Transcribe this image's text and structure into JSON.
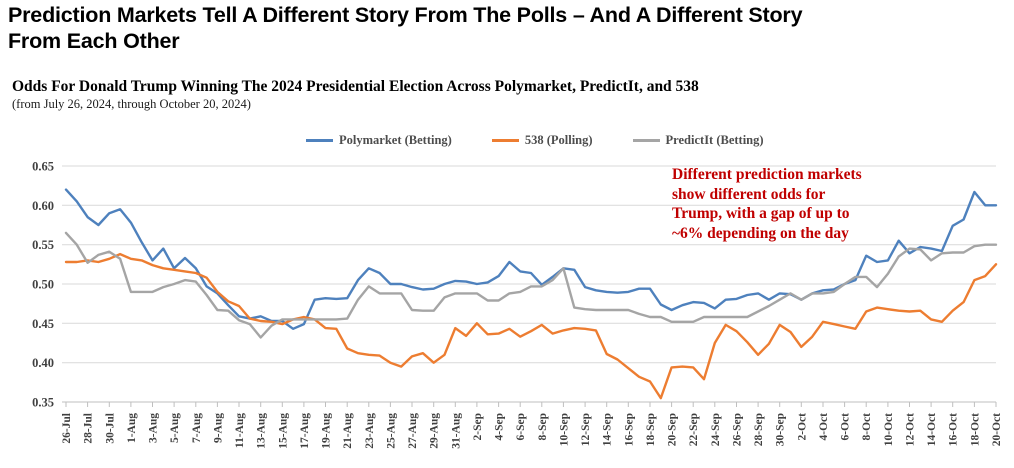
{
  "page": {
    "title": "Prediction Markets Tell A Different Story From The Polls – And A Different Story\nFrom Each Other"
  },
  "chart": {
    "title": "Odds For Donald Trump Winning The 2024 Presidential Election Across Polymarket, PredictIt, and 538",
    "subtitle": "(from July 26, 2024, through October 20, 2024)",
    "annotation": "Different prediction markets\nshow different odds for\nTrump, with a gap of up to\n~6% depending on the day",
    "annotation_color": "#c00000"
  },
  "chart_data": {
    "type": "line",
    "title": "Odds For Donald Trump Winning The 2024 Presidential Election Across Polymarket, PredictIt, and 538",
    "ylim": [
      0.35,
      0.65
    ],
    "yticks": [
      0.65,
      0.6,
      0.55,
      0.5,
      0.45,
      0.4,
      0.35
    ],
    "grid": true,
    "legend_position": "top",
    "x_tick_every": 2,
    "x": [
      "26-Jul",
      "27-Jul",
      "28-Jul",
      "29-Jul",
      "30-Jul",
      "31-Jul",
      "1-Aug",
      "2-Aug",
      "3-Aug",
      "4-Aug",
      "5-Aug",
      "6-Aug",
      "7-Aug",
      "8-Aug",
      "9-Aug",
      "10-Aug",
      "11-Aug",
      "12-Aug",
      "13-Aug",
      "14-Aug",
      "15-Aug",
      "16-Aug",
      "17-Aug",
      "18-Aug",
      "19-Aug",
      "20-Aug",
      "21-Aug",
      "22-Aug",
      "23-Aug",
      "24-Aug",
      "25-Aug",
      "26-Aug",
      "27-Aug",
      "28-Aug",
      "29-Aug",
      "30-Aug",
      "31-Aug",
      "1-Sep",
      "2-Sep",
      "3-Sep",
      "4-Sep",
      "5-Sep",
      "6-Sep",
      "7-Sep",
      "8-Sep",
      "9-Sep",
      "10-Sep",
      "11-Sep",
      "12-Sep",
      "13-Sep",
      "14-Sep",
      "15-Sep",
      "16-Sep",
      "17-Sep",
      "18-Sep",
      "19-Sep",
      "20-Sep",
      "21-Sep",
      "22-Sep",
      "23-Sep",
      "24-Sep",
      "25-Sep",
      "26-Sep",
      "27-Sep",
      "28-Sep",
      "29-Sep",
      "30-Sep",
      "1-Oct",
      "2-Oct",
      "3-Oct",
      "4-Oct",
      "5-Oct",
      "6-Oct",
      "7-Oct",
      "8-Oct",
      "9-Oct",
      "10-Oct",
      "11-Oct",
      "12-Oct",
      "13-Oct",
      "14-Oct",
      "15-Oct",
      "16-Oct",
      "17-Oct",
      "18-Oct",
      "19-Oct",
      "20-Oct"
    ],
    "series": [
      {
        "name": "Polymarket (Betting)",
        "color": "#4e81bd",
        "values": [
          0.62,
          0.605,
          0.585,
          0.575,
          0.59,
          0.595,
          0.578,
          0.553,
          0.53,
          0.545,
          0.52,
          0.533,
          0.52,
          0.497,
          0.488,
          0.473,
          0.459,
          0.456,
          0.459,
          0.453,
          0.453,
          0.443,
          0.449,
          0.48,
          0.482,
          0.481,
          0.482,
          0.505,
          0.52,
          0.514,
          0.5,
          0.5,
          0.496,
          0.493,
          0.494,
          0.5,
          0.504,
          0.503,
          0.5,
          0.502,
          0.51,
          0.528,
          0.516,
          0.514,
          0.499,
          0.509,
          0.52,
          0.518,
          0.496,
          0.492,
          0.49,
          0.489,
          0.49,
          0.494,
          0.494,
          0.474,
          0.467,
          0.473,
          0.477,
          0.476,
          0.469,
          0.48,
          0.481,
          0.486,
          0.488,
          0.48,
          0.488,
          0.487,
          0.48,
          0.488,
          0.492,
          0.493,
          0.5,
          0.505,
          0.536,
          0.528,
          0.53,
          0.555,
          0.539,
          0.547,
          0.545,
          0.542,
          0.574,
          0.582,
          0.617,
          0.6,
          0.6
        ]
      },
      {
        "name": "538 (Polling)",
        "color": "#ed7d31",
        "values": [
          0.528,
          0.528,
          0.53,
          0.528,
          0.532,
          0.538,
          0.532,
          0.53,
          0.524,
          0.52,
          0.518,
          0.516,
          0.514,
          0.508,
          0.49,
          0.478,
          0.472,
          0.456,
          0.453,
          0.452,
          0.449,
          0.455,
          0.458,
          0.455,
          0.444,
          0.443,
          0.418,
          0.412,
          0.41,
          0.409,
          0.4,
          0.395,
          0.408,
          0.412,
          0.4,
          0.41,
          0.444,
          0.434,
          0.45,
          0.436,
          0.437,
          0.443,
          0.433,
          0.44,
          0.448,
          0.437,
          0.441,
          0.444,
          0.443,
          0.441,
          0.411,
          0.404,
          0.393,
          0.382,
          0.376,
          0.355,
          0.394,
          0.395,
          0.394,
          0.379,
          0.425,
          0.448,
          0.44,
          0.426,
          0.41,
          0.424,
          0.448,
          0.439,
          0.42,
          0.433,
          0.452,
          0.449,
          0.446,
          0.443,
          0.465,
          0.47,
          0.468,
          0.466,
          0.465,
          0.466,
          0.455,
          0.452,
          0.466,
          0.477,
          0.505,
          0.51,
          0.525
        ]
      },
      {
        "name": "PredictIt (Betting)",
        "color": "#a5a5a5",
        "values": [
          0.565,
          0.55,
          0.527,
          0.537,
          0.541,
          0.532,
          0.49,
          0.49,
          0.49,
          0.496,
          0.5,
          0.505,
          0.503,
          0.486,
          0.467,
          0.466,
          0.454,
          0.449,
          0.432,
          0.447,
          0.455,
          0.455,
          0.455,
          0.455,
          0.455,
          0.455,
          0.456,
          0.48,
          0.497,
          0.488,
          0.488,
          0.488,
          0.467,
          0.466,
          0.466,
          0.483,
          0.488,
          0.488,
          0.488,
          0.479,
          0.479,
          0.488,
          0.49,
          0.497,
          0.497,
          0.505,
          0.52,
          0.47,
          0.468,
          0.467,
          0.467,
          0.467,
          0.467,
          0.462,
          0.458,
          0.458,
          0.452,
          0.452,
          0.452,
          0.458,
          0.458,
          0.458,
          0.458,
          0.458,
          0.465,
          0.472,
          0.48,
          0.488,
          0.48,
          0.488,
          0.488,
          0.49,
          0.5,
          0.509,
          0.509,
          0.496,
          0.513,
          0.535,
          0.545,
          0.544,
          0.53,
          0.539,
          0.54,
          0.54,
          0.548,
          0.55,
          0.55
        ]
      }
    ]
  }
}
